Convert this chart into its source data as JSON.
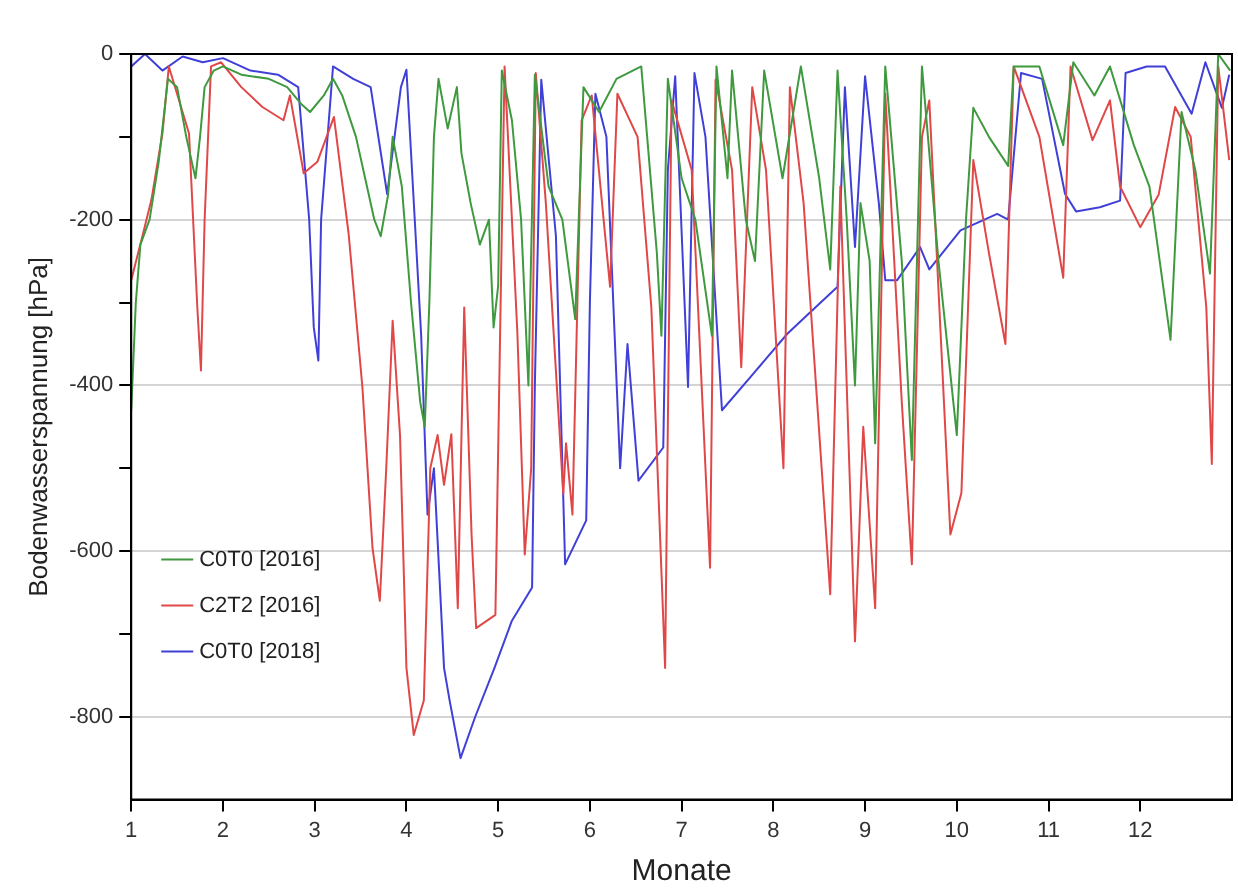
{
  "chart_data": {
    "type": "line",
    "xlabel": "Monate",
    "ylabel": "Bodenwasserspannung [hPa]",
    "xlim": [
      1,
      13
    ],
    "xticks": [
      1,
      2,
      3,
      4,
      5,
      6,
      7,
      8,
      9,
      10,
      11,
      12
    ],
    "ylim": [
      -900,
      0
    ],
    "yticks": [
      0,
      {
        "value": -100,
        "label": null
      },
      -200,
      {
        "value": -300,
        "label": null
      },
      -400,
      {
        "value": -500,
        "label": null
      },
      -600,
      {
        "value": -700,
        "label": null
      },
      -800
    ],
    "grid": "y",
    "legend": "bottom left",
    "marker": "none",
    "line_style": "solid",
    "series": [
      {
        "name": "C0T0 [2016]",
        "color": "#3f9a3f",
        "x": [
          1.0,
          1.05,
          1.1,
          1.2,
          1.3,
          1.35,
          1.4,
          1.5,
          1.6,
          1.7,
          1.75,
          1.8,
          1.9,
          2.0,
          2.2,
          2.5,
          2.7,
          2.85,
          2.95,
          3.1,
          3.2,
          3.3,
          3.45,
          3.55,
          3.65,
          3.72,
          3.8,
          3.85,
          3.95,
          4.05,
          4.15,
          4.2,
          4.25,
          4.3,
          4.35,
          4.45,
          4.55,
          4.6,
          4.7,
          4.8,
          4.9,
          4.95,
          5.0,
          5.04,
          5.15,
          5.25,
          5.33,
          5.4,
          5.55,
          5.7,
          5.84,
          5.93,
          6.1,
          6.29,
          6.56,
          6.73,
          6.78,
          6.85,
          7.0,
          7.15,
          7.33,
          7.38,
          7.5,
          7.55,
          7.7,
          7.8,
          7.9,
          8.1,
          8.3,
          8.5,
          8.62,
          8.7,
          8.8,
          8.89,
          8.95,
          9.05,
          9.11,
          9.22,
          9.4,
          9.51,
          9.62,
          9.8,
          10.0,
          10.1,
          10.18,
          10.35,
          10.56,
          10.62,
          10.9,
          11.16,
          11.27,
          11.5,
          11.67,
          11.93,
          12.1,
          12.33,
          12.45,
          12.6,
          12.76,
          12.85,
          12.98
        ],
        "values": [
          -430,
          -300,
          -230,
          -200,
          -130,
          -80,
          -30,
          -40,
          -100,
          -150,
          -100,
          -40,
          -20,
          -15,
          -25,
          -30,
          -40,
          -60,
          -70,
          -50,
          -30,
          -50,
          -100,
          -150,
          -200,
          -220,
          -170,
          -100,
          -160,
          -300,
          -420,
          -450,
          -300,
          -100,
          -30,
          -90,
          -40,
          -120,
          -180,
          -230,
          -200,
          -330,
          -280,
          -20,
          -80,
          -200,
          -400,
          -25,
          -160,
          -200,
          -320,
          -40,
          -70,
          -30,
          -15,
          -240,
          -340,
          -30,
          -150,
          -200,
          -340,
          -15,
          -150,
          -20,
          -200,
          -250,
          -20,
          -150,
          -15,
          -150,
          -260,
          -20,
          -200,
          -400,
          -180,
          -250,
          -470,
          -15,
          -250,
          -490,
          -15,
          -250,
          -460,
          -200,
          -65,
          -100,
          -135,
          -15,
          -15,
          -110,
          -10,
          -50,
          -15,
          -110,
          -160,
          -345,
          -70,
          -140,
          -265,
          0,
          -20
        ]
      },
      {
        "name": "C2T2 [2016]",
        "color": "#e04848",
        "x": [
          1.0,
          1.11,
          1.22,
          1.34,
          1.41,
          1.63,
          1.72,
          1.76,
          1.8,
          1.87,
          1.98,
          2.2,
          2.43,
          2.66,
          2.73,
          2.88,
          3.03,
          3.21,
          3.37,
          3.52,
          3.63,
          3.71,
          3.78,
          3.85,
          3.93,
          4.0,
          4.08,
          4.19,
          4.26,
          4.34,
          4.41,
          4.49,
          4.56,
          4.63,
          4.71,
          4.76,
          4.97,
          5.07,
          5.21,
          5.29,
          5.36,
          5.41,
          5.52,
          5.71,
          5.74,
          5.81,
          5.91,
          6.02,
          6.22,
          6.3,
          6.52,
          6.67,
          6.82,
          6.89,
          7.11,
          7.31,
          7.37,
          7.55,
          7.65,
          7.77,
          7.92,
          8.11,
          8.18,
          8.33,
          8.62,
          8.73,
          8.89,
          8.98,
          9.11,
          9.22,
          9.4,
          9.51,
          9.62,
          9.7,
          9.93,
          10.05,
          10.18,
          10.35,
          10.53,
          10.62,
          10.9,
          11.16,
          11.24,
          11.48,
          11.67,
          11.78,
          12.0,
          12.2,
          12.38,
          12.55,
          12.72,
          12.78,
          12.85,
          12.97
        ],
        "values": [
          -273,
          -225,
          -176,
          -96,
          -15,
          -96,
          -305,
          -382,
          -200,
          -15,
          -10,
          -40,
          -64,
          -80,
          -50,
          -144,
          -130,
          -76,
          -217,
          -402,
          -596,
          -660,
          -500,
          -322,
          -460,
          -741,
          -822,
          -780,
          -500,
          -460,
          -520,
          -459,
          -669,
          -306,
          -580,
          -693,
          -677,
          -15,
          -338,
          -604,
          -500,
          -23,
          -180,
          -531,
          -470,
          -556,
          -80,
          -50,
          -281,
          -48,
          -100,
          -306,
          -741,
          -56,
          -140,
          -620,
          -31,
          -140,
          -378,
          -40,
          -140,
          -500,
          -40,
          -180,
          -652,
          -160,
          -709,
          -450,
          -669,
          -48,
          -420,
          -616,
          -100,
          -56,
          -580,
          -530,
          -128,
          -240,
          -350,
          -15,
          -100,
          -270,
          -15,
          -104,
          -56,
          -160,
          -209,
          -170,
          -64,
          -100,
          -306,
          -495,
          -15,
          -128
        ]
      },
      {
        "name": "C0T0 [2018]",
        "color": "#4040d8",
        "x": [
          1.0,
          1.15,
          1.34,
          1.56,
          1.78,
          2.0,
          2.3,
          2.6,
          2.82,
          2.94,
          2.99,
          3.04,
          3.07,
          3.2,
          3.42,
          3.61,
          3.79,
          3.94,
          4.0,
          4.16,
          4.23,
          4.3,
          4.41,
          4.47,
          4.59,
          4.75,
          4.96,
          5.15,
          5.37,
          5.4,
          5.47,
          5.63,
          5.73,
          5.96,
          6.0,
          6.06,
          6.18,
          6.33,
          6.41,
          6.53,
          6.8,
          6.85,
          6.93,
          7.07,
          7.14,
          7.26,
          7.44,
          7.78,
          8.15,
          8.37,
          8.7,
          8.78,
          8.89,
          9.0,
          9.15,
          9.22,
          9.35,
          9.6,
          9.7,
          10.04,
          10.44,
          10.56,
          10.7,
          10.93,
          11.18,
          11.3,
          11.56,
          11.78,
          11.84,
          12.07,
          12.27,
          12.56,
          12.71,
          12.89,
          12.97
        ],
        "values": [
          -15,
          0,
          -20,
          -3,
          -10,
          -5,
          -20,
          -25,
          -40,
          -200,
          -330,
          -370,
          -200,
          -15,
          -30,
          -40,
          -169,
          -40,
          -19,
          -338,
          -556,
          -500,
          -741,
          -780,
          -850,
          -800,
          -741,
          -684,
          -644,
          -400,
          -31,
          -220,
          -616,
          -563,
          -300,
          -48,
          -100,
          -500,
          -350,
          -515,
          -475,
          -140,
          -27,
          -402,
          -23,
          -100,
          -430,
          -386,
          -338,
          -315,
          -281,
          -40,
          -233,
          -27,
          -180,
          -273,
          -273,
          -233,
          -260,
          -213,
          -193,
          -200,
          -23,
          -30,
          -169,
          -190,
          -185,
          -177,
          -23,
          -15,
          -15,
          -72,
          -10,
          -65,
          -25
        ]
      }
    ]
  }
}
